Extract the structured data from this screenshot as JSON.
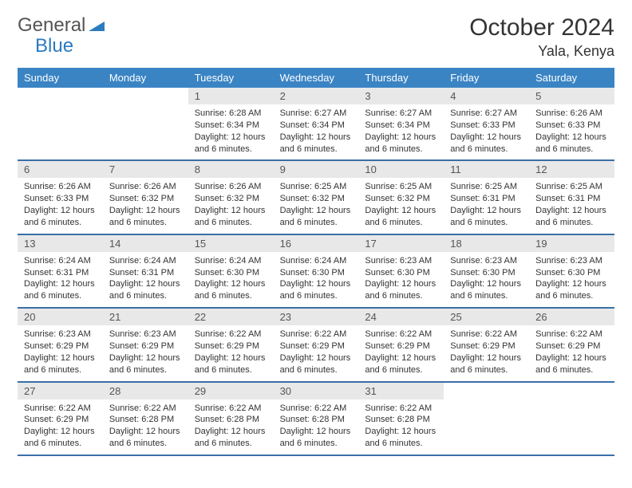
{
  "logo": {
    "text1": "General",
    "text2": "Blue"
  },
  "title": {
    "month": "October 2024",
    "location": "Yala, Kenya"
  },
  "colors": {
    "header_bg": "#3a84c4",
    "header_text": "#ffffff",
    "daynum_bg": "#e8e8e8",
    "week_border": "#3a6fa8",
    "logo_grey": "#555555",
    "logo_blue": "#2b7bbf",
    "text": "#333333",
    "background": "#ffffff"
  },
  "typography": {
    "month_fontsize": 30,
    "location_fontsize": 18,
    "dow_fontsize": 13,
    "daynum_fontsize": 13,
    "cell_fontsize": 11
  },
  "layout": {
    "columns": 7,
    "rows": 5
  },
  "dow": [
    "Sunday",
    "Monday",
    "Tuesday",
    "Wednesday",
    "Thursday",
    "Friday",
    "Saturday"
  ],
  "weeks": [
    [
      {
        "n": "",
        "sr": "",
        "ss": "",
        "d": ""
      },
      {
        "n": "",
        "sr": "",
        "ss": "",
        "d": ""
      },
      {
        "n": "1",
        "sr": "Sunrise: 6:28 AM",
        "ss": "Sunset: 6:34 PM",
        "d": "Daylight: 12 hours and 6 minutes."
      },
      {
        "n": "2",
        "sr": "Sunrise: 6:27 AM",
        "ss": "Sunset: 6:34 PM",
        "d": "Daylight: 12 hours and 6 minutes."
      },
      {
        "n": "3",
        "sr": "Sunrise: 6:27 AM",
        "ss": "Sunset: 6:34 PM",
        "d": "Daylight: 12 hours and 6 minutes."
      },
      {
        "n": "4",
        "sr": "Sunrise: 6:27 AM",
        "ss": "Sunset: 6:33 PM",
        "d": "Daylight: 12 hours and 6 minutes."
      },
      {
        "n": "5",
        "sr": "Sunrise: 6:26 AM",
        "ss": "Sunset: 6:33 PM",
        "d": "Daylight: 12 hours and 6 minutes."
      }
    ],
    [
      {
        "n": "6",
        "sr": "Sunrise: 6:26 AM",
        "ss": "Sunset: 6:33 PM",
        "d": "Daylight: 12 hours and 6 minutes."
      },
      {
        "n": "7",
        "sr": "Sunrise: 6:26 AM",
        "ss": "Sunset: 6:32 PM",
        "d": "Daylight: 12 hours and 6 minutes."
      },
      {
        "n": "8",
        "sr": "Sunrise: 6:26 AM",
        "ss": "Sunset: 6:32 PM",
        "d": "Daylight: 12 hours and 6 minutes."
      },
      {
        "n": "9",
        "sr": "Sunrise: 6:25 AM",
        "ss": "Sunset: 6:32 PM",
        "d": "Daylight: 12 hours and 6 minutes."
      },
      {
        "n": "10",
        "sr": "Sunrise: 6:25 AM",
        "ss": "Sunset: 6:32 PM",
        "d": "Daylight: 12 hours and 6 minutes."
      },
      {
        "n": "11",
        "sr": "Sunrise: 6:25 AM",
        "ss": "Sunset: 6:31 PM",
        "d": "Daylight: 12 hours and 6 minutes."
      },
      {
        "n": "12",
        "sr": "Sunrise: 6:25 AM",
        "ss": "Sunset: 6:31 PM",
        "d": "Daylight: 12 hours and 6 minutes."
      }
    ],
    [
      {
        "n": "13",
        "sr": "Sunrise: 6:24 AM",
        "ss": "Sunset: 6:31 PM",
        "d": "Daylight: 12 hours and 6 minutes."
      },
      {
        "n": "14",
        "sr": "Sunrise: 6:24 AM",
        "ss": "Sunset: 6:31 PM",
        "d": "Daylight: 12 hours and 6 minutes."
      },
      {
        "n": "15",
        "sr": "Sunrise: 6:24 AM",
        "ss": "Sunset: 6:30 PM",
        "d": "Daylight: 12 hours and 6 minutes."
      },
      {
        "n": "16",
        "sr": "Sunrise: 6:24 AM",
        "ss": "Sunset: 6:30 PM",
        "d": "Daylight: 12 hours and 6 minutes."
      },
      {
        "n": "17",
        "sr": "Sunrise: 6:23 AM",
        "ss": "Sunset: 6:30 PM",
        "d": "Daylight: 12 hours and 6 minutes."
      },
      {
        "n": "18",
        "sr": "Sunrise: 6:23 AM",
        "ss": "Sunset: 6:30 PM",
        "d": "Daylight: 12 hours and 6 minutes."
      },
      {
        "n": "19",
        "sr": "Sunrise: 6:23 AM",
        "ss": "Sunset: 6:30 PM",
        "d": "Daylight: 12 hours and 6 minutes."
      }
    ],
    [
      {
        "n": "20",
        "sr": "Sunrise: 6:23 AM",
        "ss": "Sunset: 6:29 PM",
        "d": "Daylight: 12 hours and 6 minutes."
      },
      {
        "n": "21",
        "sr": "Sunrise: 6:23 AM",
        "ss": "Sunset: 6:29 PM",
        "d": "Daylight: 12 hours and 6 minutes."
      },
      {
        "n": "22",
        "sr": "Sunrise: 6:22 AM",
        "ss": "Sunset: 6:29 PM",
        "d": "Daylight: 12 hours and 6 minutes."
      },
      {
        "n": "23",
        "sr": "Sunrise: 6:22 AM",
        "ss": "Sunset: 6:29 PM",
        "d": "Daylight: 12 hours and 6 minutes."
      },
      {
        "n": "24",
        "sr": "Sunrise: 6:22 AM",
        "ss": "Sunset: 6:29 PM",
        "d": "Daylight: 12 hours and 6 minutes."
      },
      {
        "n": "25",
        "sr": "Sunrise: 6:22 AM",
        "ss": "Sunset: 6:29 PM",
        "d": "Daylight: 12 hours and 6 minutes."
      },
      {
        "n": "26",
        "sr": "Sunrise: 6:22 AM",
        "ss": "Sunset: 6:29 PM",
        "d": "Daylight: 12 hours and 6 minutes."
      }
    ],
    [
      {
        "n": "27",
        "sr": "Sunrise: 6:22 AM",
        "ss": "Sunset: 6:29 PM",
        "d": "Daylight: 12 hours and 6 minutes."
      },
      {
        "n": "28",
        "sr": "Sunrise: 6:22 AM",
        "ss": "Sunset: 6:28 PM",
        "d": "Daylight: 12 hours and 6 minutes."
      },
      {
        "n": "29",
        "sr": "Sunrise: 6:22 AM",
        "ss": "Sunset: 6:28 PM",
        "d": "Daylight: 12 hours and 6 minutes."
      },
      {
        "n": "30",
        "sr": "Sunrise: 6:22 AM",
        "ss": "Sunset: 6:28 PM",
        "d": "Daylight: 12 hours and 6 minutes."
      },
      {
        "n": "31",
        "sr": "Sunrise: 6:22 AM",
        "ss": "Sunset: 6:28 PM",
        "d": "Daylight: 12 hours and 6 minutes."
      },
      {
        "n": "",
        "sr": "",
        "ss": "",
        "d": ""
      },
      {
        "n": "",
        "sr": "",
        "ss": "",
        "d": ""
      }
    ]
  ]
}
